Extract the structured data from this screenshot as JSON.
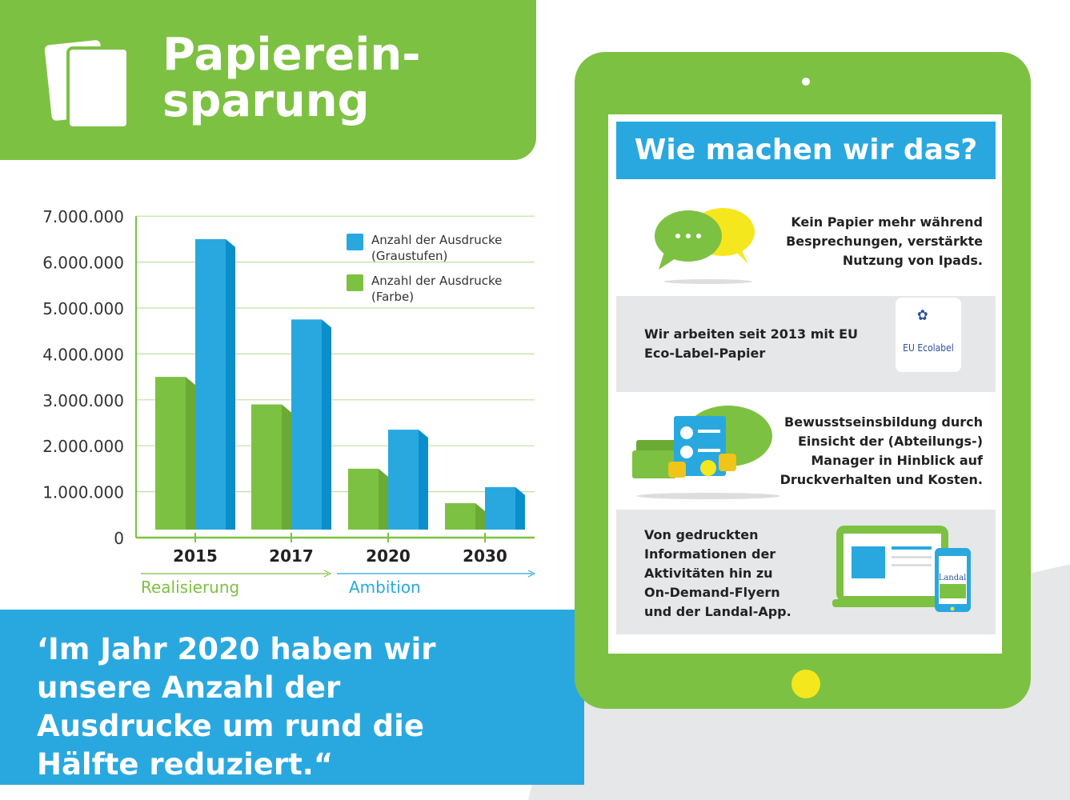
{
  "header": {
    "title": "Papierein-\nsparung",
    "icon": "paper-sheets-icon"
  },
  "chart_data": {
    "type": "bar",
    "categories": [
      "2015",
      "2017",
      "2020",
      "2030"
    ],
    "series": [
      {
        "name": "Anzahl der Ausdrucke (Farbe)",
        "values": [
          3500000,
          2900000,
          1500000,
          750000
        ],
        "color": "#7dc142"
      },
      {
        "name": "Anzahl der Ausdrucke (Graustufen)",
        "values": [
          6500000,
          4750000,
          2350000,
          1100000
        ],
        "color": "#29a8e0"
      }
    ],
    "legend": [
      {
        "line1": "Anzahl der Ausdrucke",
        "line2": "(Graustufen)",
        "color": "#29a8e0"
      },
      {
        "line1": "Anzahl der Ausdrucke",
        "line2": "(Farbe)",
        "color": "#7dc142"
      }
    ],
    "yticks": [
      "0",
      "1.000.000",
      "2.000.000",
      "3.000.000",
      "4.000.000",
      "5.000.000",
      "6.000.000",
      "7.000.000"
    ],
    "ylim": [
      0,
      7000000
    ],
    "grid": true,
    "legend_position": "top-right",
    "phases": [
      {
        "label": "Realisierung",
        "color": "#7dc142"
      },
      {
        "label": "Ambition",
        "color": "#29a8e0"
      }
    ]
  },
  "quote": "‘Im Jahr 2020 haben wir\nunsere Anzahl der\nAusdrucke um rund die\nHälfte reduziert.“",
  "tablet": {
    "title": "Wie machen wir das?",
    "items": [
      {
        "text": "Kein Papier mehr während\nBesprechungen, verstärkte\nNutzung von Ipads.",
        "icon": "speech-bubbles-icon"
      },
      {
        "text": "Wir arbeiten seit 2013 mit EU\nEco-Label-Papier",
        "icon": "eu-ecolabel-logo",
        "logo_text": "EU Ecolabel"
      },
      {
        "text": "Bewusstseinsbildung durch\nEinsicht der (Abteilungs-)\nManager  in Hinblick auf\nDruckverhalten und Kosten.",
        "icon": "money-piggy-bank-icon"
      },
      {
        "text": "Von gedruckten\nInformationen der\nAktivitäten hin zu\nOn-Demand-Flyern\nund der Landal-App.",
        "icon": "laptop-phone-icon",
        "logo_text": "Landal"
      }
    ]
  }
}
